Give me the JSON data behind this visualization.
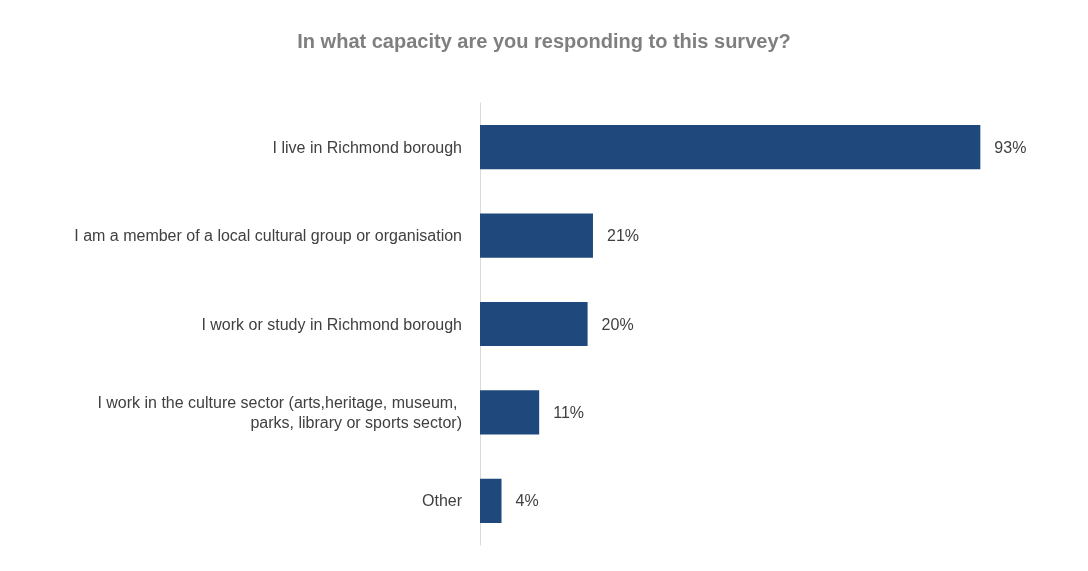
{
  "chart_data": {
    "type": "bar",
    "orientation": "horizontal",
    "title": "In what capacity are you responding to this survey?",
    "categories": [
      "I live in Richmond borough",
      "I am a member of a local cultural group or organisation",
      "I work or study in Richmond borough",
      "I work in the culture sector (arts,heritage, museum, parks, library or sports sector)",
      "Other"
    ],
    "values": [
      93,
      21,
      20,
      11,
      4
    ],
    "value_labels": [
      "93%",
      "21%",
      "20%",
      "11%",
      "4%"
    ],
    "color": "#1f497d"
  }
}
